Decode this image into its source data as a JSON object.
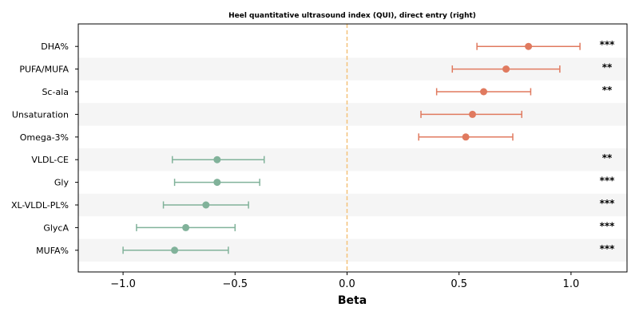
{
  "chart_data": {
    "type": "forest",
    "title": "Heel quantitative ultrasound index (QUI), direct entry (right)",
    "xlabel": "Beta",
    "xlim": [
      -1.2,
      1.25
    ],
    "xticks": [
      {
        "value": -1.0,
        "label": "−1.0"
      },
      {
        "value": -0.5,
        "label": "−0.5"
      },
      {
        "value": 0.0,
        "label": "0.0"
      },
      {
        "value": 0.5,
        "label": "0.5"
      },
      {
        "value": 1.0,
        "label": "1.0"
      }
    ],
    "reference_line": 0.0,
    "colors": {
      "positive": "#e07a5f",
      "negative": "#81b29a",
      "reference": "#f4c27a",
      "band": "#f5f5f5"
    },
    "rows": [
      {
        "label": "DHA%",
        "beta": 0.81,
        "lo": 0.58,
        "hi": 1.04,
        "sig": "***"
      },
      {
        "label": "PUFA/MUFA",
        "beta": 0.71,
        "lo": 0.47,
        "hi": 0.95,
        "sig": "**"
      },
      {
        "label": "Sc-ala",
        "beta": 0.61,
        "lo": 0.4,
        "hi": 0.82,
        "sig": "**"
      },
      {
        "label": "Unsaturation",
        "beta": 0.56,
        "lo": 0.33,
        "hi": 0.78,
        "sig": ""
      },
      {
        "label": "Omega-3%",
        "beta": 0.53,
        "lo": 0.32,
        "hi": 0.74,
        "sig": ""
      },
      {
        "label": "VLDL-CE",
        "beta": -0.58,
        "lo": -0.78,
        "hi": -0.37,
        "sig": "**"
      },
      {
        "label": "Gly",
        "beta": -0.58,
        "lo": -0.77,
        "hi": -0.39,
        "sig": "***"
      },
      {
        "label": "XL-VLDL-PL%",
        "beta": -0.63,
        "lo": -0.82,
        "hi": -0.44,
        "sig": "***"
      },
      {
        "label": "GlycA",
        "beta": -0.72,
        "lo": -0.94,
        "hi": -0.5,
        "sig": "***"
      },
      {
        "label": "MUFA%",
        "beta": -0.77,
        "lo": -1.0,
        "hi": -0.53,
        "sig": "***"
      }
    ]
  }
}
